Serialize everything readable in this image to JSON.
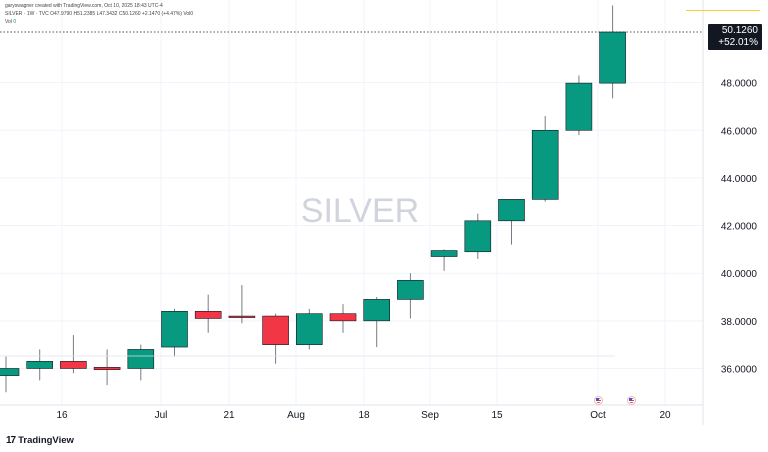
{
  "header": {
    "attribution": "garyswagner created with TradingView.com, Oct 10, 2025 18:43 UTC-4",
    "symbol_line": "SILVER · 1W · TVC",
    "ohlc": {
      "open_label": "O",
      "open": "47.9790",
      "high_label": "H",
      "high": "51.2385",
      "low_label": "L",
      "low": "47.3432",
      "close_label": "C",
      "close": "50.1260",
      "change": "+2.1470 (+4.47%)",
      "vol_label": "Vol",
      "vol_inline": "0"
    },
    "vol_line_label": "Vol",
    "vol_line_value": "0"
  },
  "price_tag": {
    "price": "50.1260",
    "change_pct": "+52.01%"
  },
  "watermark": "SILVER",
  "branding": {
    "name": "TradingView"
  },
  "colors": {
    "up": "#089981",
    "down": "#f23645",
    "grid": "#f0f3fa",
    "text": "#131722"
  },
  "chart_data": {
    "type": "candlestick",
    "timeframe": "1W",
    "symbol": "SILVER",
    "y_axis": {
      "ticks": [
        "36.0000",
        "38.0000",
        "40.0000",
        "42.0000",
        "44.0000",
        "46.0000",
        "48.0000"
      ],
      "range": [
        34.0,
        51.5
      ]
    },
    "x_axis": {
      "ticks": [
        "16",
        "Jul",
        "21",
        "Aug",
        "18",
        "Sep",
        "15",
        "Oct",
        "20"
      ]
    },
    "candles": [
      {
        "o": 35.7,
        "h": 36.5,
        "l": 35.0,
        "c": 36.0
      },
      {
        "o": 36.0,
        "h": 36.8,
        "l": 35.5,
        "c": 36.3
      },
      {
        "o": 36.3,
        "h": 37.4,
        "l": 35.8,
        "c": 36.0
      },
      {
        "o": 36.05,
        "h": 36.8,
        "l": 35.3,
        "c": 35.95
      },
      {
        "o": 36.0,
        "h": 37.0,
        "l": 35.5,
        "c": 36.8
      },
      {
        "o": 36.9,
        "h": 38.5,
        "l": 36.5,
        "c": 38.4
      },
      {
        "o": 38.4,
        "h": 39.1,
        "l": 37.5,
        "c": 38.1
      },
      {
        "o": 38.2,
        "h": 39.5,
        "l": 37.9,
        "c": 38.15
      },
      {
        "o": 38.2,
        "h": 38.3,
        "l": 36.2,
        "c": 37.0
      },
      {
        "o": 37.0,
        "h": 38.5,
        "l": 36.8,
        "c": 38.3
      },
      {
        "o": 38.3,
        "h": 38.7,
        "l": 37.5,
        "c": 38.0
      },
      {
        "o": 38.0,
        "h": 39.0,
        "l": 36.9,
        "c": 38.9
      },
      {
        "o": 38.9,
        "h": 40.0,
        "l": 38.1,
        "c": 39.7
      },
      {
        "o": 40.7,
        "h": 41.0,
        "l": 40.1,
        "c": 40.95
      },
      {
        "o": 40.9,
        "h": 42.5,
        "l": 40.6,
        "c": 42.2
      },
      {
        "o": 42.2,
        "h": 43.1,
        "l": 41.2,
        "c": 43.1
      },
      {
        "o": 43.1,
        "h": 46.6,
        "l": 43.0,
        "c": 46.0
      },
      {
        "o": 46.0,
        "h": 48.3,
        "l": 45.8,
        "c": 47.98
      },
      {
        "o": 47.979,
        "h": 51.2385,
        "l": 47.3432,
        "c": 50.126
      }
    ],
    "last_price": 50.126
  }
}
